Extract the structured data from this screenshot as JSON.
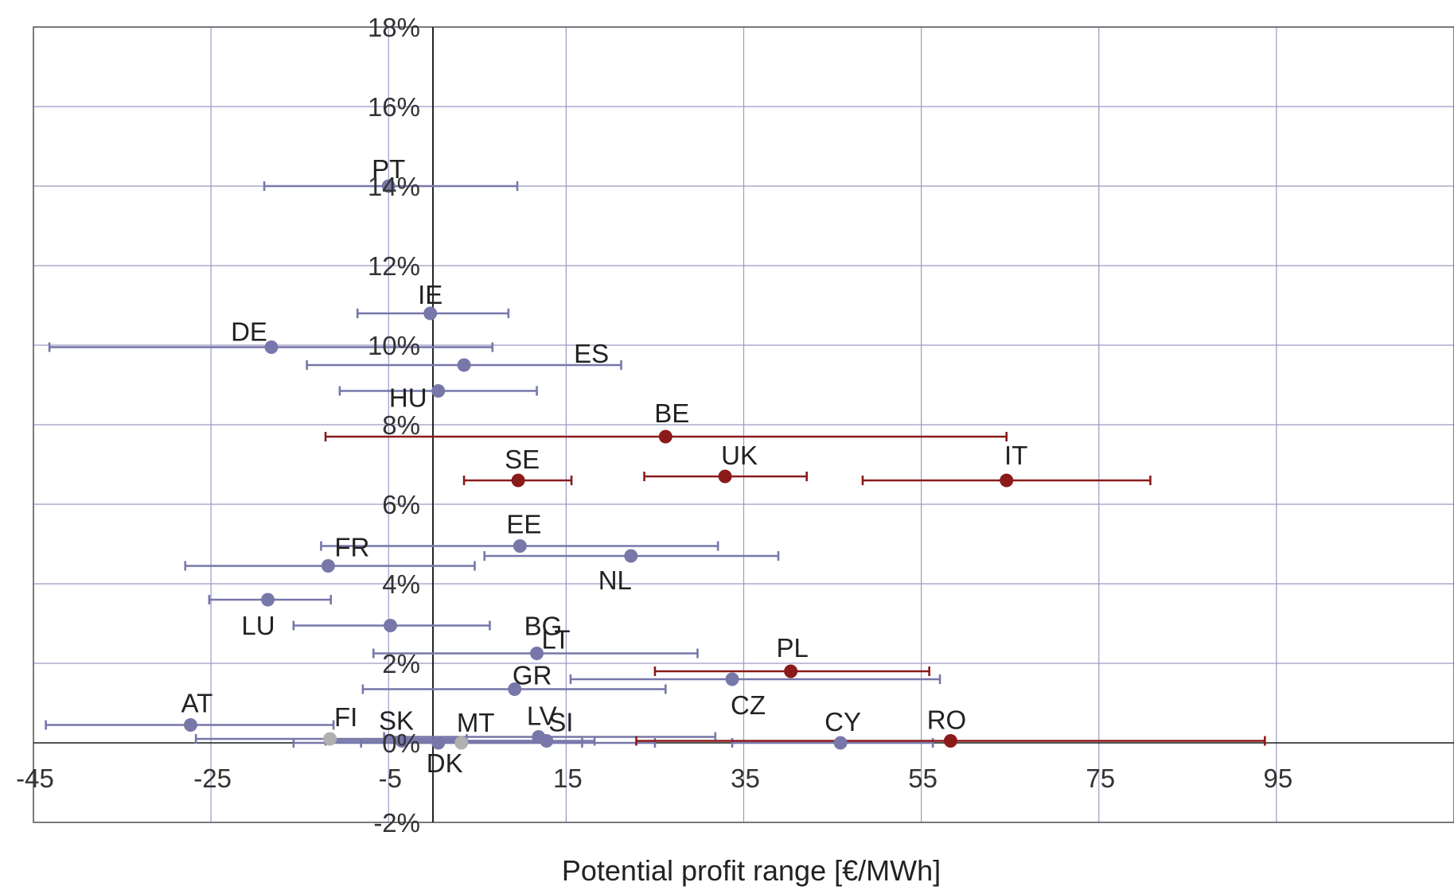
{
  "chart_data": {
    "type": "scatter",
    "title": "",
    "xlabel": "Potential profit range [€/MWh]",
    "ylabel": "",
    "xlim": [
      -45,
      115
    ],
    "ylim": [
      -2,
      18
    ],
    "x_ticks": [
      -45,
      -25,
      -5,
      15,
      35,
      55,
      75,
      95
    ],
    "x_tick_labels": [
      "-45",
      "-25",
      "-5",
      "15",
      "35",
      "55",
      "75",
      "95"
    ],
    "y_ticks": [
      -2,
      0,
      2,
      4,
      6,
      8,
      10,
      12,
      14,
      16,
      18
    ],
    "y_tick_labels": [
      "-2%",
      "0%",
      "2%",
      "4%",
      "6%",
      "8%",
      "10%",
      "12%",
      "14%",
      "16%",
      "18%"
    ],
    "grid": true,
    "colors": {
      "blue": "#7777aa",
      "red": "#8b1a1a",
      "grey": "#b0b0b0",
      "grid": "#9a9ac4",
      "axis": "#222222"
    },
    "series": [
      {
        "label": "PT",
        "x": -5,
        "y": 14.0,
        "xmin": -19,
        "xmax": 9.5,
        "color": "blue"
      },
      {
        "label": "IE",
        "x": -0.3,
        "y": 10.8,
        "xmin": -8.5,
        "xmax": 8.5,
        "color": "blue"
      },
      {
        "label": "DE",
        "x": -18.2,
        "y": 9.95,
        "xmin": -43.2,
        "xmax": 6.7,
        "color": "blue"
      },
      {
        "label": "ES",
        "x": 3.5,
        "y": 9.5,
        "xmin": -14.2,
        "xmax": 21.2,
        "color": "blue"
      },
      {
        "label": "HU",
        "x": 0.6,
        "y": 8.85,
        "xmin": -10.5,
        "xmax": 11.7,
        "color": "blue"
      },
      {
        "label": "BE",
        "x": 26.2,
        "y": 7.7,
        "xmin": -12.1,
        "xmax": 64.6,
        "color": "red"
      },
      {
        "label": "SE",
        "x": 9.6,
        "y": 6.6,
        "xmin": 3.5,
        "xmax": 15.6,
        "color": "red"
      },
      {
        "label": "UK",
        "x": 32.9,
        "y": 6.7,
        "xmin": 23.8,
        "xmax": 42.1,
        "color": "red"
      },
      {
        "label": "IT",
        "x": 64.6,
        "y": 6.6,
        "xmin": 48.4,
        "xmax": 80.8,
        "color": "red"
      },
      {
        "label": "EE",
        "x": 9.8,
        "y": 4.95,
        "xmin": -12.6,
        "xmax": 32.1,
        "color": "blue"
      },
      {
        "label": "NL",
        "x": 22.3,
        "y": 4.7,
        "xmin": 5.8,
        "xmax": 38.9,
        "color": "blue"
      },
      {
        "label": "FR",
        "x": -11.8,
        "y": 4.45,
        "xmin": -27.9,
        "xmax": 4.7,
        "color": "blue"
      },
      {
        "label": "LU",
        "x": -18.6,
        "y": 3.6,
        "xmin": -25.2,
        "xmax": -11.5,
        "color": "blue"
      },
      {
        "label": "BG",
        "x": -4.8,
        "y": 2.95,
        "xmin": -15.7,
        "xmax": 6.4,
        "color": "blue"
      },
      {
        "label": "LT",
        "x": 11.7,
        "y": 2.25,
        "xmin": -6.7,
        "xmax": 29.8,
        "color": "blue"
      },
      {
        "label": "PL",
        "x": 40.3,
        "y": 1.8,
        "xmin": 25.0,
        "xmax": 55.9,
        "color": "red"
      },
      {
        "label": "CZ",
        "x": 33.7,
        "y": 1.6,
        "xmin": 15.5,
        "xmax": 57.1,
        "color": "blue"
      },
      {
        "label": "GR",
        "x": 9.2,
        "y": 1.35,
        "xmin": -7.9,
        "xmax": 26.2,
        "color": "blue"
      },
      {
        "label": "AT",
        "x": -27.3,
        "y": 0.45,
        "xmin": -43.6,
        "xmax": -11.2,
        "color": "blue"
      },
      {
        "label": "FI",
        "x": -11.6,
        "y": 0.1,
        "xmin": -26.7,
        "xmax": 3.8,
        "color": "grey"
      },
      {
        "label": "SK",
        "x": -3.5,
        "y": 0.05,
        "xmin": -12.1,
        "xmax": 13.0,
        "color": "blue"
      },
      {
        "label": "DK",
        "x": 0.6,
        "y": 0.0,
        "xmin": -15.7,
        "xmax": 16.8,
        "color": "blue"
      },
      {
        "label": "MT",
        "x": 3.2,
        "y": 0.0,
        "xmin": -8.1,
        "xmax": 25.0,
        "color": "grey"
      },
      {
        "label": "LV",
        "x": 11.9,
        "y": 0.15,
        "xmin": -5.5,
        "xmax": 31.8,
        "color": "blue"
      },
      {
        "label": "SI",
        "x": 12.8,
        "y": 0.05,
        "xmin": -3.9,
        "xmax": 18.2,
        "color": "blue"
      },
      {
        "label": "CY",
        "x": 45.9,
        "y": 0.0,
        "xmin": 33.7,
        "xmax": 56.3,
        "color": "blue"
      },
      {
        "label": "RO",
        "x": 58.3,
        "y": 0.05,
        "xmin": 22.9,
        "xmax": 93.7,
        "color": "red"
      }
    ]
  }
}
